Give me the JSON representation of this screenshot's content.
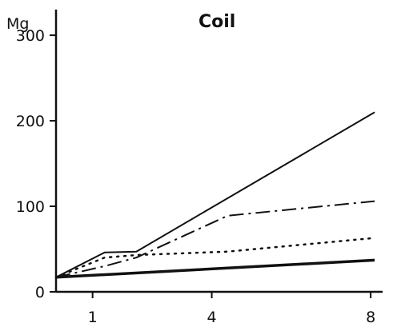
{
  "chart_data": {
    "type": "line",
    "title": "Coil",
    "xlabel": "",
    "ylabel": "Mg",
    "x_ticks": [
      1,
      4,
      8
    ],
    "y_ticks": [
      0,
      100,
      200,
      300
    ],
    "xlim": [
      0.08,
      8.3
    ],
    "ylim": [
      0,
      330
    ],
    "grid": false,
    "legend": "none",
    "series": [
      {
        "style": "solid-thin",
        "color": "#111111",
        "points": [
          [
            0.08,
            17
          ],
          [
            1.3,
            46
          ],
          [
            2.1,
            47
          ],
          [
            8.1,
            210
          ]
        ]
      },
      {
        "style": "dash-dot",
        "color": "#111111",
        "points": [
          [
            0.08,
            17
          ],
          [
            1.3,
            30
          ],
          [
            2.1,
            40
          ],
          [
            4.4,
            89
          ],
          [
            8.1,
            106
          ]
        ]
      },
      {
        "style": "dotted",
        "color": "#111111",
        "points": [
          [
            0.08,
            17
          ],
          [
            1.3,
            40
          ],
          [
            2.1,
            43
          ],
          [
            4.4,
            47
          ],
          [
            8.1,
            63
          ]
        ]
      },
      {
        "style": "solid-thick",
        "color": "#111111",
        "points": [
          [
            0.08,
            17
          ],
          [
            8.1,
            37
          ]
        ]
      }
    ]
  }
}
